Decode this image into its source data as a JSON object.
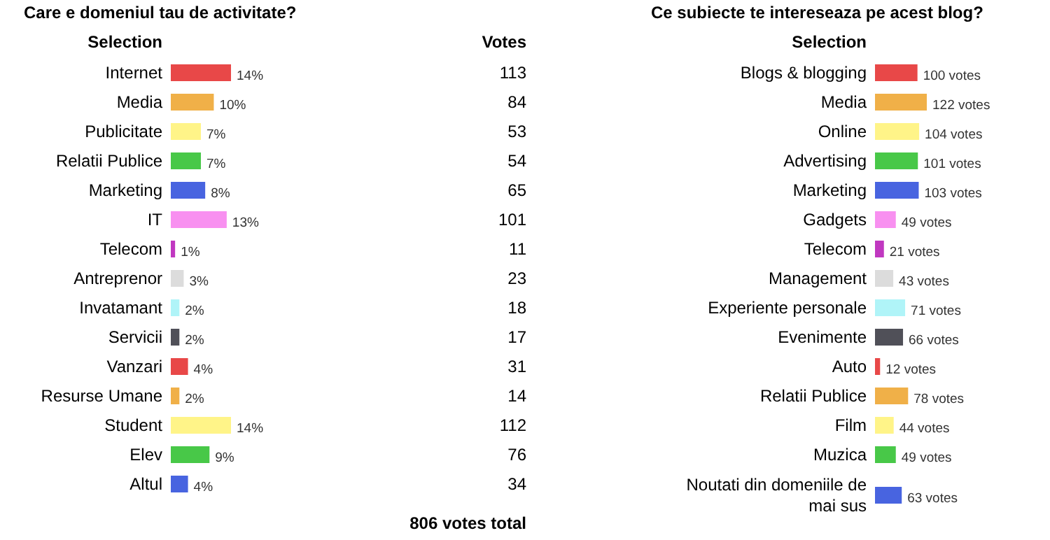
{
  "chart_data": [
    {
      "type": "bar",
      "orientation": "horizontal",
      "title": "Care e domeniul tau de activitate?",
      "ylabel": "Selection",
      "categories": [
        "Internet",
        "Media",
        "Publicitate",
        "Relatii Publice",
        "Marketing",
        "IT",
        "Telecom",
        "Antreprenor",
        "Invatamant",
        "Servicii",
        "Vanzari",
        "Resurse Umane",
        "Student",
        "Elev",
        "Altul"
      ],
      "values": [
        14,
        10,
        7,
        7,
        8,
        13,
        1,
        3,
        2,
        2,
        4,
        2,
        14,
        9,
        4
      ],
      "y2label": "Votes",
      "y2_categories": [
        "113",
        "84",
        "53",
        "54",
        "65",
        "101",
        "11",
        "23",
        "18",
        "17",
        "31",
        "14",
        "112",
        "76",
        "34"
      ],
      "colors": [
        "#e84848",
        "#f0b048",
        "#fff488",
        "#48c848",
        "#4864e0",
        "#f890f0",
        "#c038c0",
        "#dcdcdc",
        "#b0f4f8",
        "#505058",
        "#e84848",
        "#f0b048",
        "#fff488",
        "#48c848",
        "#4864e0"
      ],
      "value_labels": [
        "14%",
        "10%",
        "7%",
        "7%",
        "8%",
        "13%",
        "1%",
        "3%",
        "2%",
        "2%",
        "4%",
        "2%",
        "14%",
        "9%",
        "4%"
      ],
      "annotations": [
        "806 votes total"
      ]
    },
    {
      "type": "bar",
      "orientation": "horizontal",
      "title": "Ce subiecte te intereseaza pe acest blog?",
      "ylabel": "Selection",
      "categories": [
        "Blogs & blogging",
        "Media",
        "Online",
        "Advertising",
        "Marketing",
        "Gadgets",
        "Telecom",
        "Management",
        "Experiente personale",
        "Evenimente",
        "Auto",
        "Relatii Publice",
        "Film",
        "Muzica",
        "Noutati din domeniile de mai sus"
      ],
      "values": [
        100,
        122,
        104,
        101,
        103,
        49,
        21,
        43,
        71,
        66,
        12,
        78,
        44,
        49,
        63
      ],
      "colors": [
        "#e84848",
        "#f0b048",
        "#fff488",
        "#48c848",
        "#4864e0",
        "#f890f0",
        "#c038c0",
        "#dcdcdc",
        "#b0f4f8",
        "#505058",
        "#e84848",
        "#f0b048",
        "#fff488",
        "#48c848",
        "#4864e0"
      ],
      "value_labels": [
        "100 votes",
        "122 votes",
        "104 votes",
        "101 votes",
        "103 votes",
        "49 votes",
        "21 votes",
        "43 votes",
        "71 votes",
        "66 votes",
        "12 votes",
        "78 votes",
        "44 votes",
        "49 votes",
        "63 votes"
      ]
    }
  ]
}
